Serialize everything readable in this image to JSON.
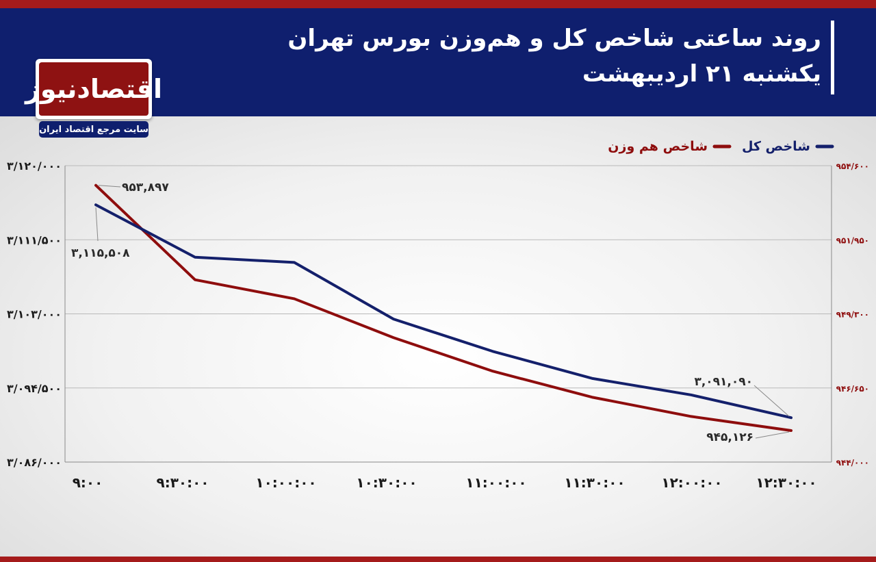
{
  "header": {
    "title": "روند ساعتی شاخص کل و هم‌وزن بورس تهران",
    "subtitle": "یکشنبه ۲۱ اردیبهشت"
  },
  "logo": {
    "name": "اقتصادنیوز",
    "tagline": "سایت مرجع اقتصاد ایران"
  },
  "colors": {
    "header_bg": "#0f1f6e",
    "accent_red": "#a51b1b",
    "series_main": "#14206b",
    "series_equal": "#8e0d0d"
  },
  "chart_data": {
    "type": "line",
    "x": [
      "۹:۰۰",
      "۹:۳۰:۰۰",
      "۱۰:۰۰:۰۰",
      "۱۰:۳۰:۰۰",
      "۱۱:۰۰:۰۰",
      "۱۱:۳۰:۰۰",
      "۱۲:۰۰:۰۰",
      "۱۲:۳۰:۰۰"
    ],
    "legend_position": "top-right",
    "grid": true,
    "left_axis": {
      "ylim": [
        3086000,
        3120000
      ],
      "ticks": [
        3086000,
        3094500,
        3103000,
        3111500,
        3120000
      ],
      "tick_labels": [
        "۳/۰۸۶/۰۰۰",
        "۳/۰۹۴/۵۰۰",
        "۳/۱۰۳/۰۰۰",
        "۳/۱۱۱/۵۰۰",
        "۳/۱۲۰/۰۰۰"
      ]
    },
    "right_axis": {
      "ylim": [
        944000,
        954600
      ],
      "ticks": [
        944000,
        946650,
        949300,
        951950,
        954600
      ],
      "tick_labels": [
        "۹۴۴/۰۰۰",
        "۹۴۶/۶۵۰",
        "۹۴۹/۳۰۰",
        "۹۵۱/۹۵۰",
        "۹۵۴/۶۰۰"
      ]
    },
    "series": [
      {
        "name": "شاخص کل",
        "axis": "left",
        "values": [
          3115508,
          3109500,
          3108900,
          3102400,
          3098700,
          3095600,
          3093700,
          3091090
        ],
        "start_label": "۳,۱۱۵,۵۰۸",
        "end_label": "۳,۰۹۱,۰۹۰"
      },
      {
        "name": "شاخص هم وزن",
        "axis": "right",
        "values": [
          953897,
          950520,
          949840,
          948450,
          947250,
          946320,
          945630,
          945126
        ],
        "start_label": "۹۵۳,۸۹۷",
        "end_label": "۹۴۵,۱۲۶"
      }
    ]
  }
}
